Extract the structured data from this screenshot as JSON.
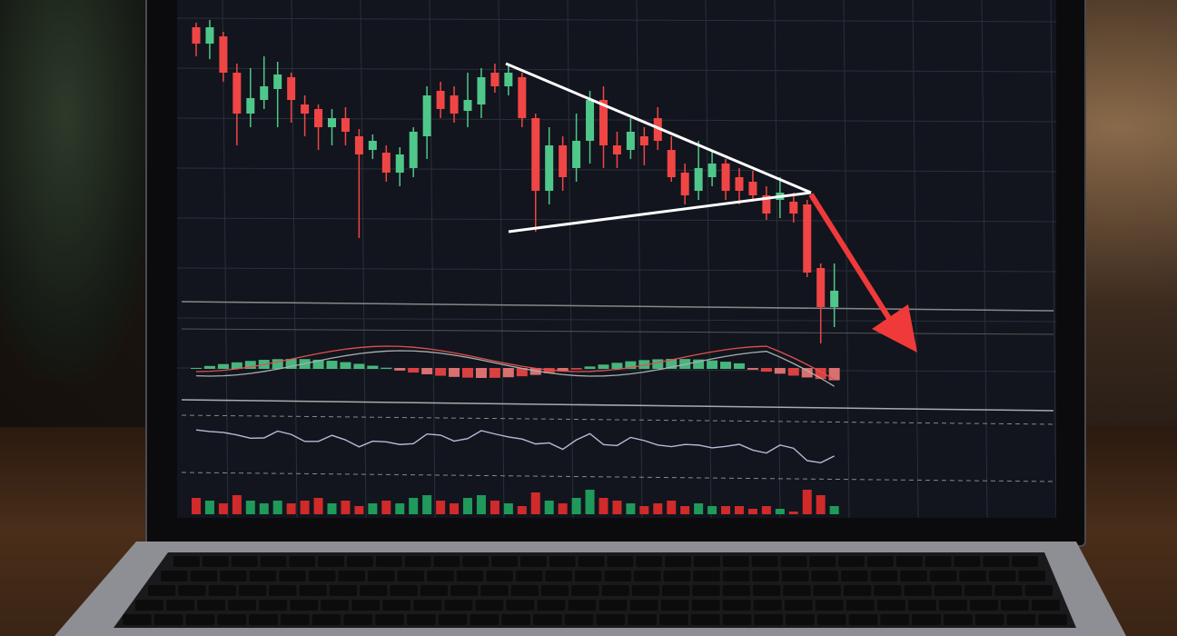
{
  "scene": {
    "description_colors": {
      "screen_bg": "#12151d",
      "grid": "#2a2f3a",
      "bull": "#4fc78a",
      "bear": "#f04545",
      "annotation": "#ffffff",
      "arrow": "#f03a3a",
      "indicator_line": "#b8b8d8"
    }
  },
  "chart_data": {
    "type": "candlestick",
    "candles_ohlc": [
      [
        350,
        332,
        355,
        318
      ],
      [
        332,
        350,
        358,
        315
      ],
      [
        340,
        300,
        345,
        290
      ],
      [
        300,
        255,
        310,
        220
      ],
      [
        255,
        272,
        305,
        240
      ],
      [
        270,
        285,
        318,
        260
      ],
      [
        282,
        298,
        312,
        240
      ],
      [
        295,
        270,
        300,
        245
      ],
      [
        265,
        255,
        275,
        230
      ],
      [
        260,
        240,
        265,
        215
      ],
      [
        240,
        250,
        260,
        220
      ],
      [
        250,
        235,
        262,
        220
      ],
      [
        230,
        210,
        238,
        118
      ],
      [
        215,
        225,
        232,
        205
      ],
      [
        212,
        190,
        220,
        180
      ],
      [
        190,
        210,
        218,
        175
      ],
      [
        195,
        235,
        240,
        185
      ],
      [
        230,
        275,
        285,
        205
      ],
      [
        280,
        260,
        290,
        250
      ],
      [
        275,
        255,
        285,
        245
      ],
      [
        258,
        270,
        300,
        240
      ],
      [
        265,
        295,
        305,
        250
      ],
      [
        300,
        285,
        310,
        278
      ],
      [
        285,
        300,
        308,
        275
      ],
      [
        295,
        250,
        300,
        240
      ],
      [
        250,
        170,
        255,
        125
      ],
      [
        170,
        220,
        240,
        155
      ],
      [
        220,
        185,
        230,
        170
      ],
      [
        195,
        225,
        255,
        180
      ],
      [
        225,
        270,
        280,
        200
      ],
      [
        270,
        220,
        285,
        195
      ],
      [
        220,
        210,
        235,
        195
      ],
      [
        215,
        235,
        250,
        205
      ],
      [
        230,
        220,
        240,
        198
      ],
      [
        250,
        225,
        262,
        215
      ],
      [
        215,
        185,
        230,
        180
      ],
      [
        190,
        165,
        200,
        155
      ],
      [
        170,
        195,
        225,
        160
      ],
      [
        185,
        200,
        215,
        175
      ],
      [
        200,
        170,
        205,
        160
      ],
      [
        185,
        170,
        195,
        155
      ],
      [
        180,
        165,
        192,
        160
      ],
      [
        165,
        145,
        175,
        138
      ],
      [
        160,
        168,
        185,
        140
      ],
      [
        158,
        145,
        168,
        135
      ],
      [
        155,
        80,
        160,
        75
      ],
      [
        85,
        42,
        90,
        2
      ],
      [
        42,
        60,
        90,
        20
      ]
    ],
    "volumes": [
      6,
      5,
      4,
      7,
      5,
      4,
      5,
      4,
      5,
      6,
      4,
      5,
      3,
      4,
      5,
      4,
      6,
      7,
      5,
      4,
      6,
      7,
      5,
      4,
      3,
      8,
      5,
      4,
      6,
      9,
      6,
      5,
      4,
      3,
      4,
      5,
      3,
      4,
      3,
      3,
      3,
      2,
      3,
      2,
      1,
      9,
      7,
      3
    ],
    "annotations": [
      "descending-triangle",
      "breakdown-arrow"
    ]
  }
}
